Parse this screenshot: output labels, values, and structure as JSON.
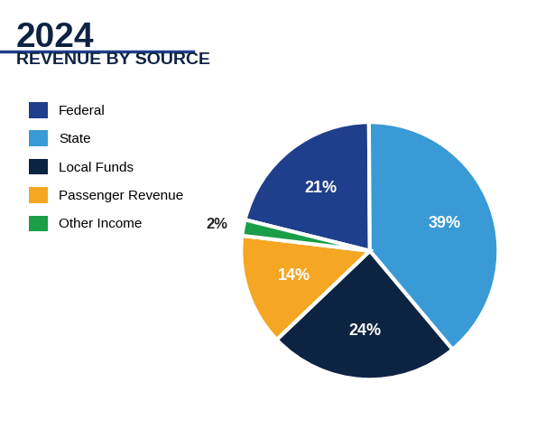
{
  "chart_data": {
    "type": "pie",
    "title": "2024",
    "subtitle": "REVENUE BY SOURCE",
    "categories": [
      "Federal",
      "State",
      "Local Funds",
      "Passenger Revenue",
      "Other Income"
    ],
    "values": [
      21,
      39,
      24,
      14,
      2
    ],
    "value_labels": [
      "21%",
      "39%",
      "24%",
      "14%",
      "2%"
    ],
    "colors": [
      "#1f3f8c",
      "#3a9ad6",
      "#0d2342",
      "#f5a623",
      "#1a9e48"
    ],
    "data_labels": true,
    "legend": "upper left"
  }
}
